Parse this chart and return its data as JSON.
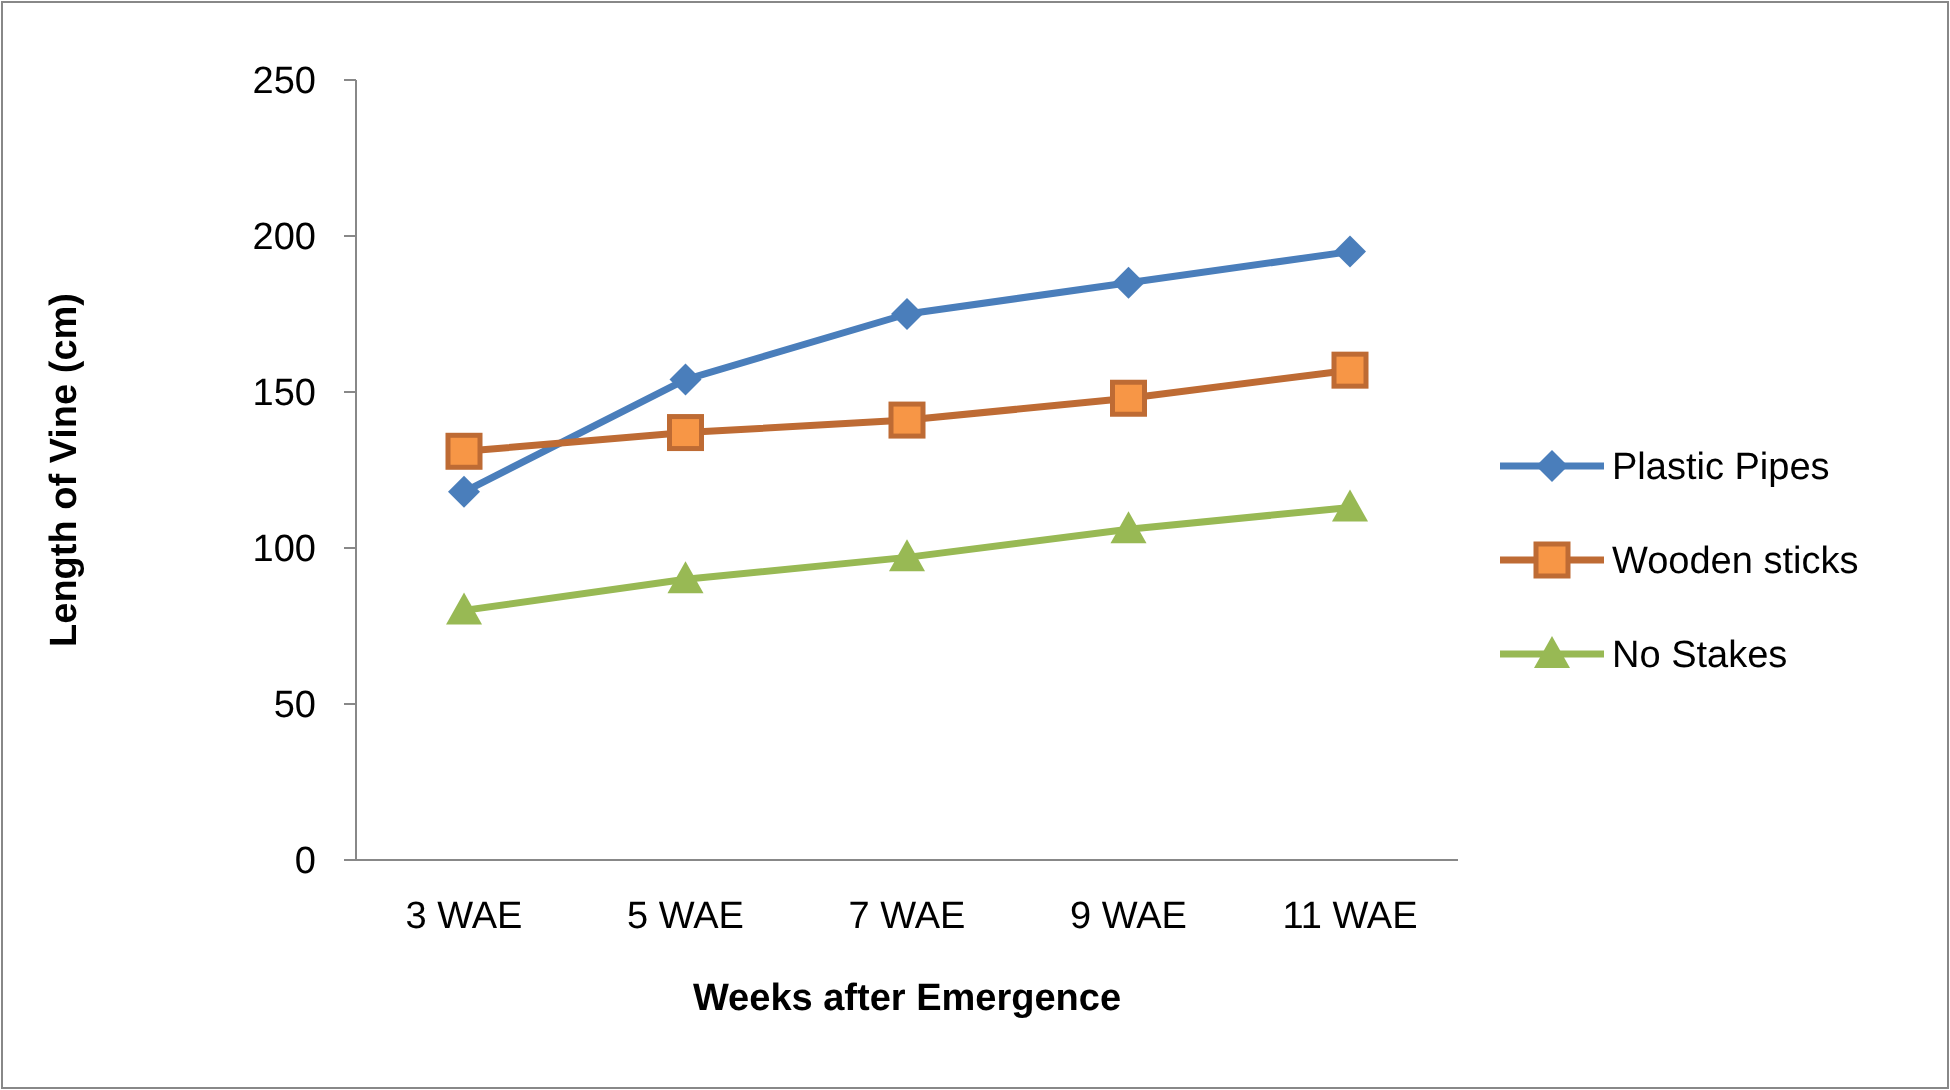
{
  "chart_data": {
    "type": "line",
    "xlabel": "Weeks after Emergence",
    "ylabel": "Length of Vine (cm)",
    "categories": [
      "3 WAE",
      "5 WAE",
      "7 WAE",
      "9 WAE",
      "11 WAE"
    ],
    "series": [
      {
        "name": "Plastic Pipes",
        "color": "#4a7ebb",
        "marker": "diamond",
        "values": [
          118,
          154,
          175,
          185,
          195
        ]
      },
      {
        "name": "Wooden sticks",
        "color": "#be6b34",
        "marker": "square",
        "values": [
          131,
          137,
          141,
          148,
          157
        ]
      },
      {
        "name": "No Stakes",
        "color": "#98b954",
        "marker": "triangle",
        "values": [
          80,
          90,
          97,
          106,
          113
        ]
      }
    ],
    "ylim": [
      0,
      250
    ],
    "yticks": [
      0,
      50,
      100,
      150,
      200,
      250
    ],
    "grid": false,
    "legend": "right"
  }
}
